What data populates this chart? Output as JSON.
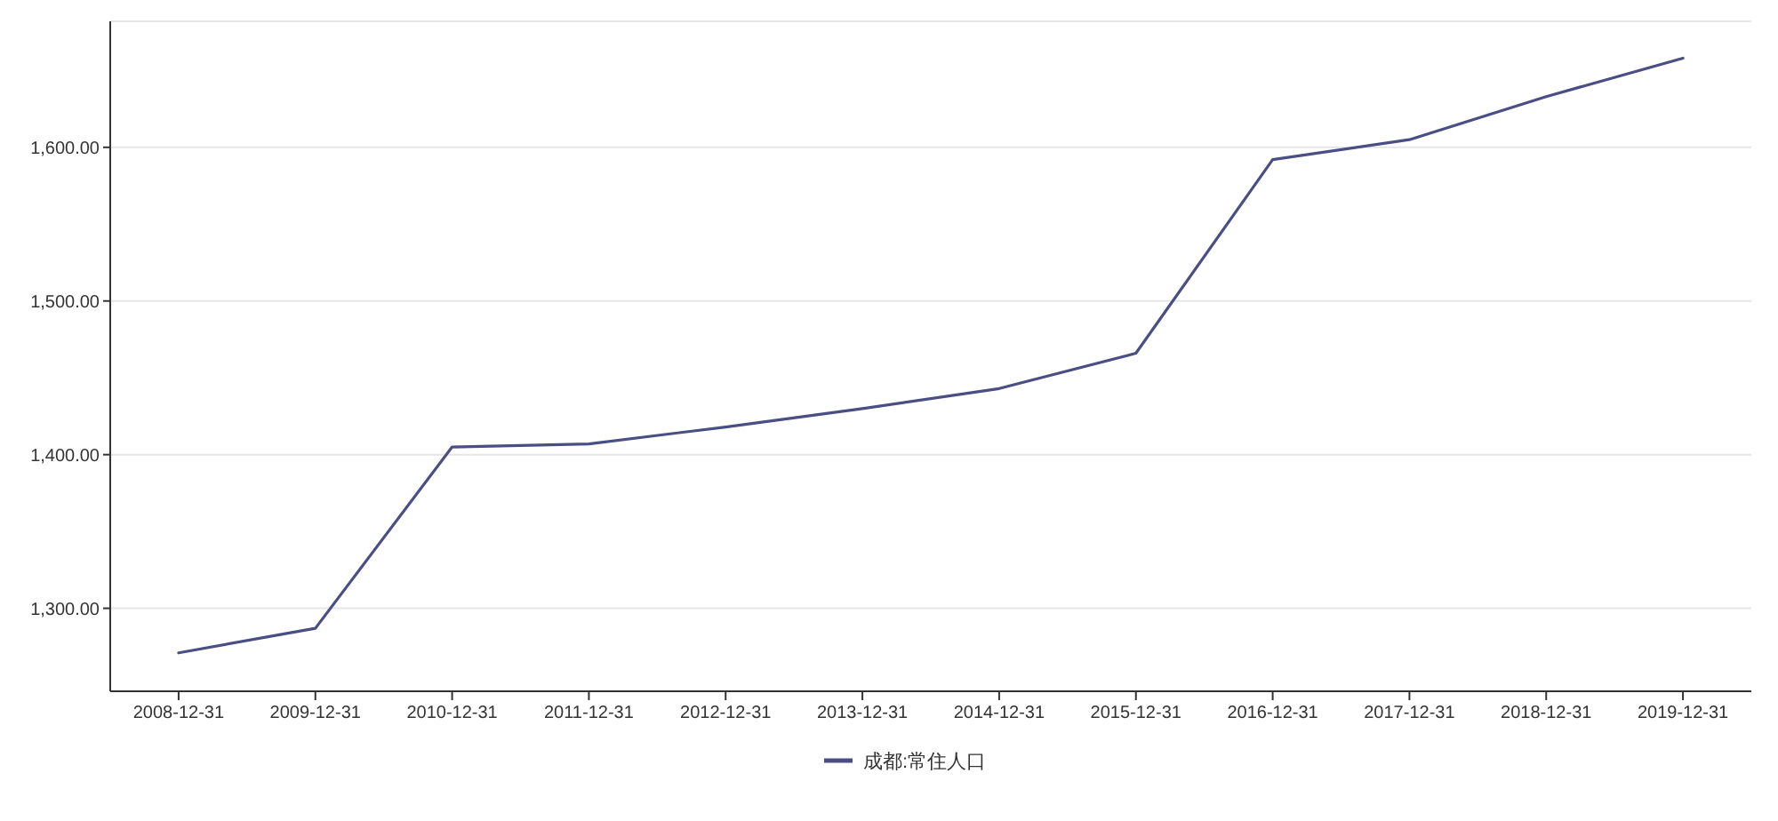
{
  "chart_data": {
    "type": "line",
    "categories": [
      "2008-12-31",
      "2009-12-31",
      "2010-12-31",
      "2011-12-31",
      "2012-12-31",
      "2013-12-31",
      "2014-12-31",
      "2015-12-31",
      "2016-12-31",
      "2017-12-31",
      "2018-12-31",
      "2019-12-31"
    ],
    "series": [
      {
        "name": "成都:常住人口",
        "color": "#4a4e85",
        "values": [
          1271,
          1287,
          1405,
          1407,
          1418,
          1430,
          1443,
          1466,
          1592,
          1605,
          1633,
          1658
        ]
      }
    ],
    "ylim": [
      1246,
      1682
    ],
    "yticks": [
      {
        "value": 1300,
        "label": "1,300.00"
      },
      {
        "value": 1400,
        "label": "1,400.00"
      },
      {
        "value": 1500,
        "label": "1,500.00"
      },
      {
        "value": 1600,
        "label": "1,600.00"
      }
    ],
    "grid": "y",
    "legend": "bottom",
    "marker": "none",
    "line_style": "solid"
  }
}
